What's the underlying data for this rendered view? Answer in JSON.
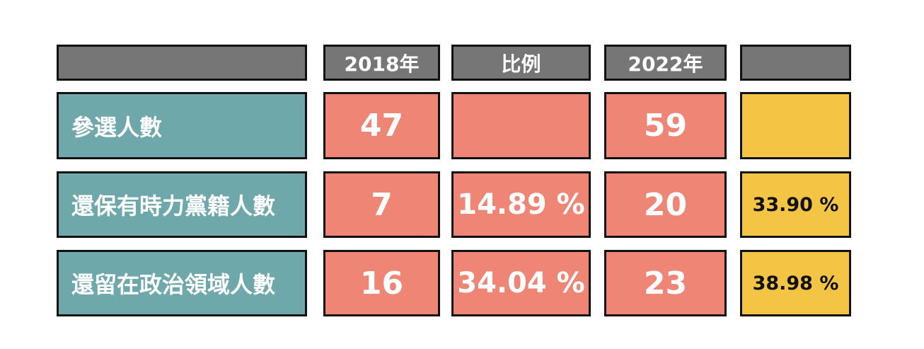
{
  "colors": {
    "header": "#767676",
    "label": "#6fa8ab",
    "value": "#ef8575",
    "highlight": "#f4c545",
    "border": "#111111"
  },
  "chart_data": {
    "type": "table",
    "columns": [
      "",
      "2018年",
      "比例",
      "2022年",
      ""
    ],
    "rows": [
      {
        "label": "參選人數",
        "y2018": "47",
        "ratio_2018": "",
        "y2022": "59",
        "ratio_2022": ""
      },
      {
        "label": "還保有時力黨籍人數",
        "y2018": "7",
        "ratio_2018": "14.89 %",
        "y2022": "20",
        "ratio_2022": "33.90 %"
      },
      {
        "label": "還留在政治領域人數",
        "y2018": "16",
        "ratio_2018": "34.04 %",
        "y2022": "23",
        "ratio_2022": "38.98 %"
      }
    ]
  }
}
